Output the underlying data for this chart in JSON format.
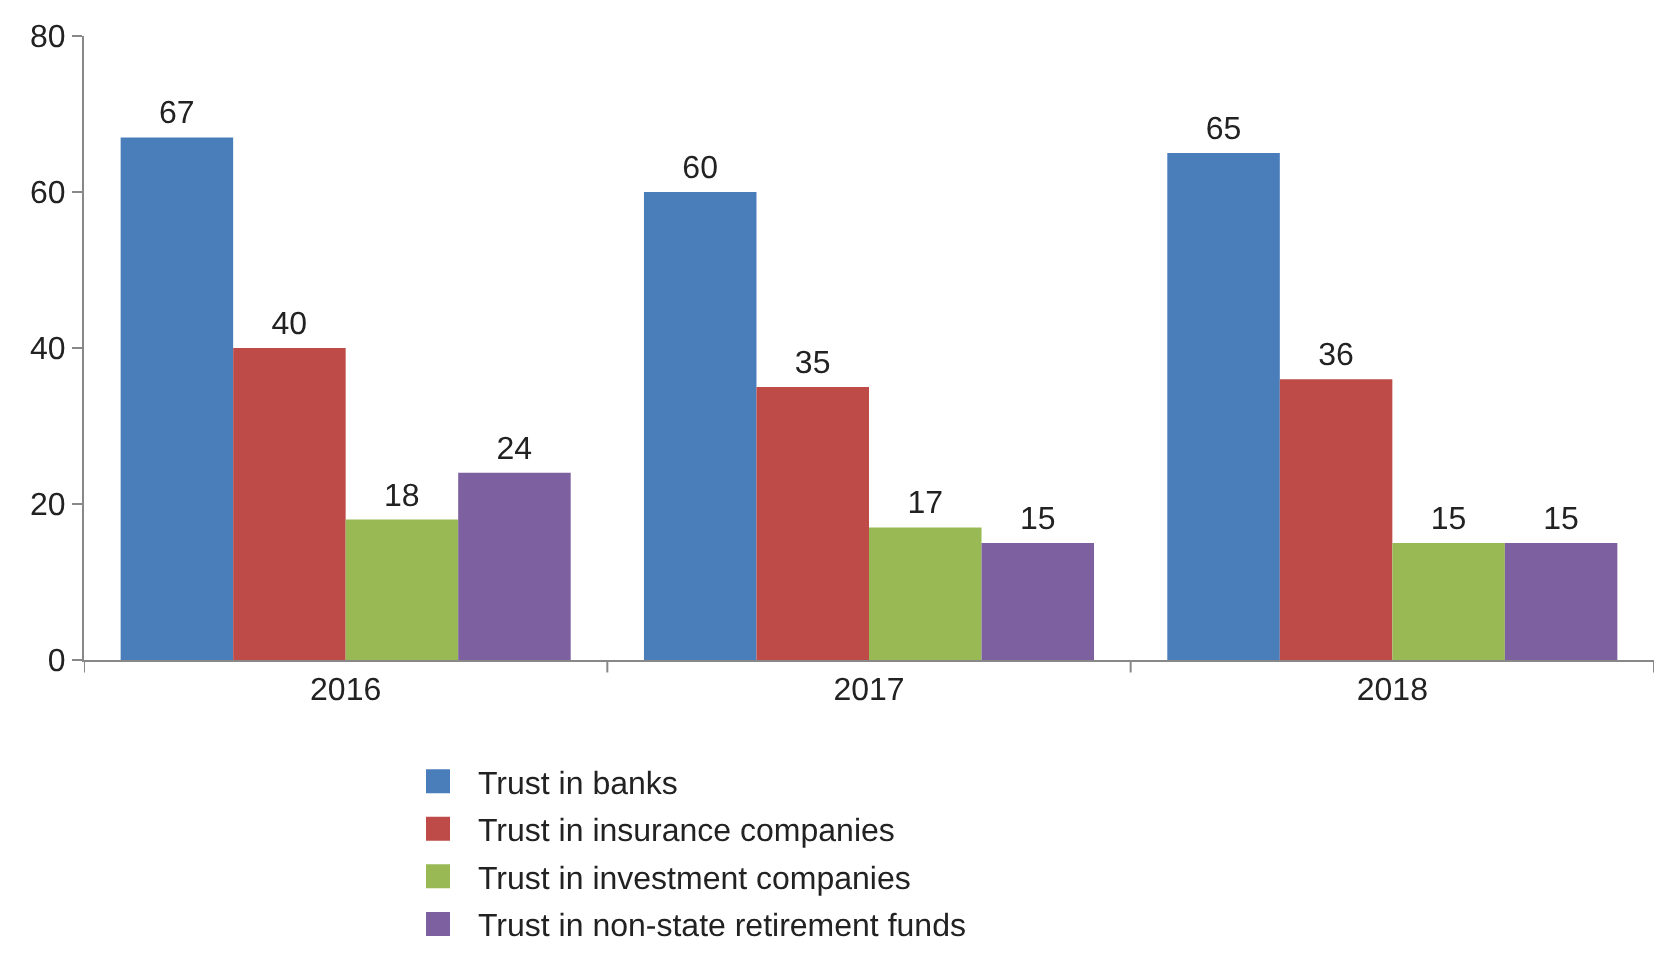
{
  "chart_data": {
    "type": "bar",
    "categories": [
      "2016",
      "2017",
      "2018"
    ],
    "series": [
      {
        "name": "Trust in banks",
        "color": "#4a7ebb",
        "values": [
          67,
          60,
          65
        ]
      },
      {
        "name": "Trust in insurance companies",
        "color": "#be4b48",
        "values": [
          40,
          35,
          36
        ]
      },
      {
        "name": "Trust in investment companies",
        "color": "#98b954",
        "values": [
          18,
          17,
          15
        ]
      },
      {
        "name": "Trust in non-state retirement funds",
        "color": "#7d60a0",
        "values": [
          24,
          15,
          15
        ]
      }
    ],
    "ylim": [
      0,
      80
    ],
    "yticks": [
      0,
      20,
      40,
      60,
      80
    ],
    "legend": "bottom",
    "data_labels": true
  }
}
